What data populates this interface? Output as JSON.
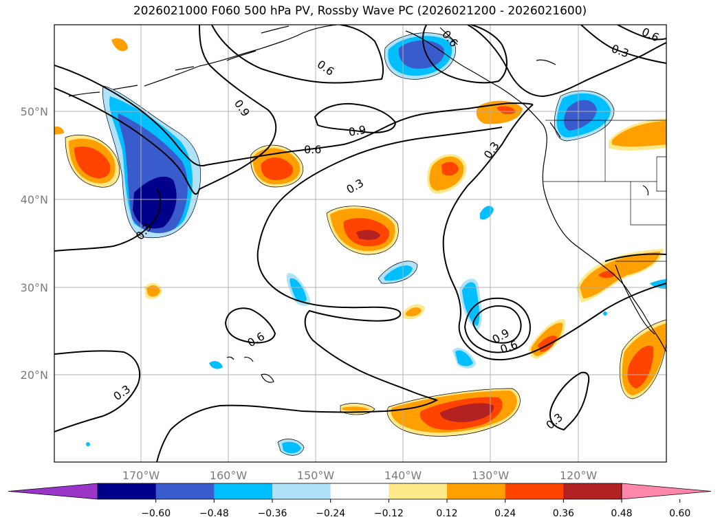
{
  "title": "2026021000 F060 500 hPa PV, Rossby Wave PC (2026021200 - 2026021600)",
  "lat_labels": [
    "50°N",
    "40°N",
    "30°N",
    "20°N"
  ],
  "lon_labels": [
    "170°W",
    "160°W",
    "150°W",
    "140°W",
    "130°W",
    "120°W"
  ],
  "contour_labels": [
    "0.9",
    "0.6",
    "0.3",
    "0.9",
    "0.6",
    "0.3",
    "0.6",
    "0.3",
    "0.6",
    "0.9",
    "0.6",
    "0.3",
    "0.3",
    "0.6",
    "0.3"
  ],
  "colorbar": {
    "ticks": [
      "−0.60",
      "−0.48",
      "−0.36",
      "−0.24",
      "−0.12",
      "0.12",
      "0.24",
      "0.36",
      "0.48",
      "0.60"
    ],
    "colors": [
      "#9a35c8",
      "#00008b",
      "#3a5bcc",
      "#00bfff",
      "#b0e2fa",
      "#ffffff",
      "#fde98a",
      "#ff9f00",
      "#ff4400",
      "#b22222",
      "#ff88aa"
    ]
  },
  "colors": {
    "frame": "#000000",
    "grid": "#b0b0b0",
    "coast": "#000000"
  }
}
